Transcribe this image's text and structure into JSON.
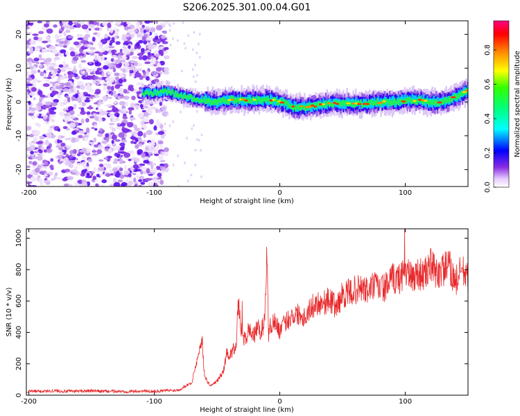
{
  "title": "S206.2025.301.00.04.G01",
  "chart_data": [
    {
      "type": "heatmap",
      "xlabel": "Height of straight line (km)",
      "ylabel": "Frequency (Hz)",
      "xlim": [
        -202,
        150
      ],
      "ylim": [
        -25,
        24
      ],
      "xticks": [
        -200,
        -100,
        0,
        100
      ],
      "xtick_labels": [
        "-200",
        "-100",
        "0",
        "100"
      ],
      "yticks": [
        -20,
        -10,
        0,
        10,
        20
      ],
      "ytick_labels": [
        "-20",
        "-10",
        "0",
        "10",
        "20"
      ],
      "ridge_frequency": {
        "x": [
          -110,
          -90,
          -80,
          -70,
          -60,
          -50,
          -40,
          -30,
          -20,
          -10,
          0,
          10,
          20,
          30,
          40,
          50,
          60,
          70,
          80,
          90,
          100,
          110,
          120,
          130,
          140,
          150
        ],
        "y": [
          2.5,
          3.0,
          2.0,
          1.0,
          0.5,
          0.0,
          0.5,
          0.5,
          0.5,
          0.8,
          0.0,
          -1.5,
          -1.5,
          -1.0,
          -0.5,
          -0.5,
          -0.5,
          -0.5,
          0.0,
          0.0,
          0.5,
          0.5,
          0.0,
          0.0,
          1.5,
          3.5
        ]
      },
      "colorbar": {
        "label": "Normalized spectral amplitude",
        "range": [
          0.0,
          0.97
        ],
        "ticks": [
          0.0,
          0.2,
          0.4,
          0.6,
          0.8
        ],
        "tick_labels": [
          "0.0",
          "0.2",
          "0.4",
          "0.6",
          "0.8"
        ]
      }
    },
    {
      "type": "line",
      "xlabel": "Height of straight line (km)",
      "ylabel": "SNR (10 * v/v)",
      "xlim": [
        -202,
        150
      ],
      "ylim": [
        0,
        1060
      ],
      "xticks": [
        -200,
        -100,
        0,
        100
      ],
      "xtick_labels": [
        "-200",
        "-100",
        "0",
        "100"
      ],
      "yticks": [
        0,
        200,
        400,
        600,
        800,
        1000
      ],
      "ytick_labels": [
        "0",
        "200",
        "400",
        "600",
        "800",
        "1000"
      ],
      "series": [
        {
          "name": "SNR",
          "color": "#e8282a",
          "x": [
            -202,
            -190,
            -180,
            -170,
            -160,
            -150,
            -140,
            -130,
            -120,
            -110,
            -100,
            -90,
            -85,
            -80,
            -75,
            -70,
            -68,
            -65,
            -62,
            -60,
            -57,
            -55,
            -50,
            -45,
            -42,
            -40,
            -35,
            -33,
            -30,
            -27,
            -25,
            -20,
            -18,
            -15,
            -12,
            -10,
            -9,
            -8,
            -5,
            0,
            5,
            10,
            15,
            20,
            25,
            30,
            35,
            40,
            45,
            50,
            55,
            60,
            65,
            70,
            75,
            80,
            85,
            90,
            95,
            100,
            105,
            110,
            115,
            120,
            125,
            130,
            135,
            140,
            145,
            150
          ],
          "y": [
            25,
            25,
            28,
            25,
            26,
            27,
            25,
            24,
            24,
            26,
            25,
            30,
            30,
            35,
            60,
            80,
            160,
            250,
            370,
            120,
            80,
            60,
            90,
            150,
            280,
            250,
            320,
            570,
            380,
            350,
            420,
            380,
            440,
            400,
            480,
            920,
            360,
            430,
            480,
            410,
            470,
            510,
            520,
            500,
            560,
            590,
            590,
            610,
            560,
            640,
            650,
            670,
            680,
            660,
            700,
            680,
            690,
            740,
            740,
            800,
            740,
            780,
            760,
            830,
            770,
            800,
            820,
            720,
            800,
            740
          ]
        }
      ]
    }
  ]
}
